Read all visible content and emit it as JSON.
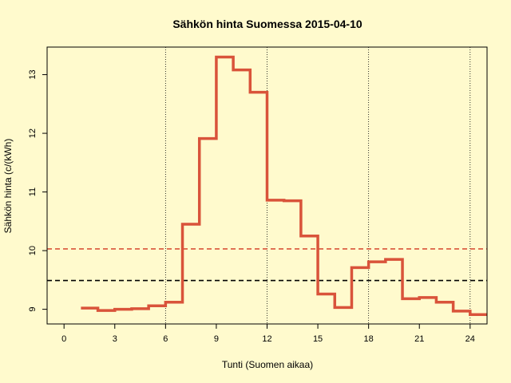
{
  "chart_data": {
    "type": "line",
    "step": true,
    "title": "Sähkön hinta Suomessa 2015-04-10",
    "xlabel": "Tunti (Suomen aikaa)",
    "ylabel": "Sähkön hinta (c/(kWh)",
    "xlim": [
      -1,
      25
    ],
    "ylim": [
      8.75,
      13.47
    ],
    "x_ticks": [
      0,
      3,
      6,
      9,
      12,
      15,
      18,
      21,
      24
    ],
    "y_ticks": [
      9,
      10,
      11,
      12,
      13
    ],
    "vertical_gridlines_x": [
      6,
      12,
      18,
      24
    ],
    "series": [
      {
        "color": "#d9533a",
        "x": [
          1,
          2,
          3,
          4,
          5,
          6,
          7,
          8,
          9,
          10,
          11,
          12,
          13,
          14,
          15,
          16,
          17,
          18,
          19,
          20,
          21,
          22,
          23,
          24,
          25
        ],
        "values": [
          9.02,
          8.98,
          9.0,
          9.01,
          9.06,
          9.12,
          10.45,
          11.91,
          13.3,
          13.08,
          12.7,
          10.86,
          10.85,
          10.25,
          9.26,
          9.03,
          9.71,
          9.81,
          9.85,
          9.18,
          9.2,
          9.12,
          8.97,
          8.91,
          8.91
        ]
      }
    ],
    "reference_lines": [
      {
        "y": 10.03,
        "color": "#d9533a",
        "style": "dashed"
      },
      {
        "y": 9.49,
        "color": "#000000",
        "style": "dashed"
      }
    ]
  }
}
